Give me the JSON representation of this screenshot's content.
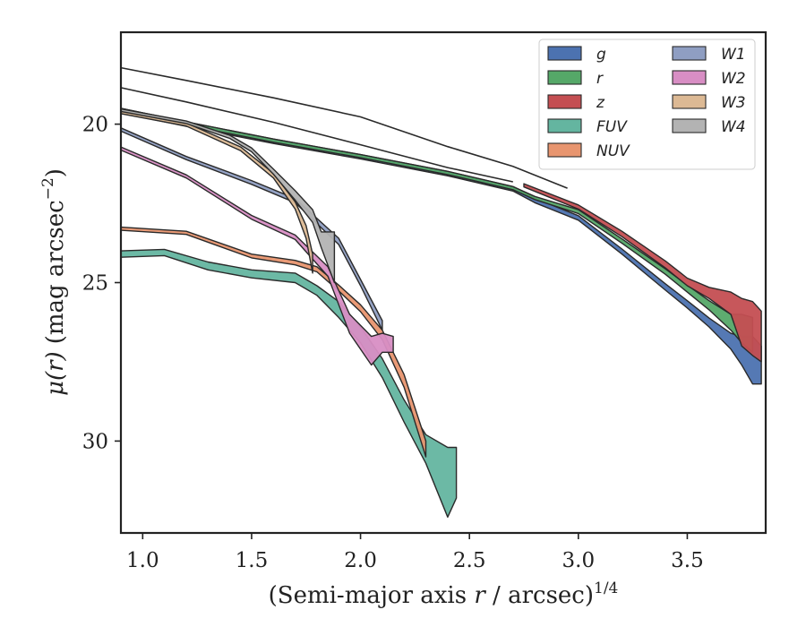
{
  "chart_data": {
    "type": "area",
    "xlabel": "(Semi-major axis r / arcsec)",
    "xlabel_prefix": "(Semi-major axis ",
    "xlabel_var": "r",
    "xlabel_suffix": " / arcsec)",
    "xlabel_sup": "1/4",
    "ylabel_mu": "μ(r)",
    "ylabel_unit": "(mag arcsec",
    "ylabel_sup": "−2",
    "ylabel_close": ")",
    "xlim": [
      0.9,
      3.86
    ],
    "ylim": [
      32.9,
      17.1
    ],
    "y_inverted": true,
    "xticks": [
      1.0,
      1.5,
      2.0,
      2.5,
      3.0,
      3.5
    ],
    "xtick_labels": [
      "1.0",
      "1.5",
      "2.0",
      "2.5",
      "3.0",
      "3.5"
    ],
    "yticks": [
      20,
      25,
      30
    ],
    "ytick_labels": [
      "20",
      "25",
      "30"
    ],
    "grid": false,
    "legend_position": "top-right",
    "legend_columns": 2,
    "series": [
      {
        "name": "g",
        "color": "#4c72b0",
        "points": [
          [
            0.9,
            19.5,
            19.64
          ],
          [
            1.2,
            19.93,
            20.07
          ],
          [
            1.6,
            20.47,
            20.61
          ],
          [
            2.0,
            20.96,
            21.1
          ],
          [
            2.4,
            21.49,
            21.63
          ],
          [
            2.7,
            21.97,
            22.11
          ],
          [
            2.8,
            22.34,
            22.48
          ],
          [
            3.0,
            22.89,
            23.03
          ],
          [
            3.2,
            23.94,
            24.1
          ],
          [
            3.4,
            25.04,
            25.24
          ],
          [
            3.5,
            25.57,
            25.8
          ],
          [
            3.6,
            26.12,
            26.4
          ],
          [
            3.7,
            26.6,
            27.1
          ],
          [
            3.75,
            26.7,
            27.6
          ],
          [
            3.8,
            26.7,
            28.2
          ],
          [
            3.84,
            27.0,
            28.2
          ]
        ]
      },
      {
        "name": "r",
        "color": "#55a868",
        "points": [
          [
            0.9,
            19.5,
            19.6
          ],
          [
            1.2,
            19.93,
            20.03
          ],
          [
            1.6,
            20.47,
            20.57
          ],
          [
            2.0,
            20.96,
            21.06
          ],
          [
            2.4,
            21.49,
            21.59
          ],
          [
            2.7,
            21.97,
            22.07
          ],
          [
            2.8,
            22.28,
            22.38
          ],
          [
            3.0,
            22.7,
            22.82
          ],
          [
            3.2,
            23.62,
            23.76
          ],
          [
            3.4,
            24.57,
            24.74
          ],
          [
            3.5,
            25.08,
            25.3
          ],
          [
            3.6,
            25.57,
            25.86
          ],
          [
            3.7,
            26.0,
            26.5
          ],
          [
            3.75,
            26.0,
            26.9
          ],
          [
            3.8,
            26.1,
            27.2
          ]
        ]
      },
      {
        "name": "z",
        "color": "#c44e52",
        "points": [
          [
            2.75,
            21.88,
            21.98
          ],
          [
            3.0,
            22.55,
            22.68
          ],
          [
            3.2,
            23.38,
            23.55
          ],
          [
            3.4,
            24.32,
            24.54
          ],
          [
            3.5,
            24.86,
            25.1
          ],
          [
            3.6,
            25.15,
            25.5
          ],
          [
            3.7,
            25.3,
            26.0
          ],
          [
            3.75,
            25.5,
            27.0
          ],
          [
            3.8,
            25.6,
            27.3
          ],
          [
            3.84,
            25.9,
            27.5
          ]
        ]
      },
      {
        "name": "FUV",
        "color": "#64b5a0",
        "points": [
          [
            0.9,
            24.0,
            24.2
          ],
          [
            1.1,
            23.95,
            24.15
          ],
          [
            1.3,
            24.35,
            24.6
          ],
          [
            1.5,
            24.6,
            24.85
          ],
          [
            1.7,
            24.7,
            25.0
          ],
          [
            1.8,
            25.1,
            25.4
          ],
          [
            1.9,
            25.6,
            26.1
          ],
          [
            2.0,
            26.4,
            26.9
          ],
          [
            2.1,
            27.4,
            28.0
          ],
          [
            2.2,
            28.7,
            29.4
          ],
          [
            2.3,
            29.8,
            30.7
          ],
          [
            2.4,
            30.2,
            32.4
          ],
          [
            2.44,
            30.2,
            31.8
          ]
        ]
      },
      {
        "name": "NUV",
        "color": "#e8956f",
        "points": [
          [
            0.9,
            23.25,
            23.35
          ],
          [
            1.2,
            23.38,
            23.48
          ],
          [
            1.5,
            24.1,
            24.22
          ],
          [
            1.7,
            24.3,
            24.44
          ],
          [
            1.8,
            24.5,
            24.66
          ],
          [
            1.9,
            25.08,
            25.26
          ],
          [
            2.0,
            25.7,
            25.92
          ],
          [
            2.1,
            26.5,
            26.8
          ],
          [
            2.2,
            27.9,
            28.3
          ],
          [
            2.3,
            30.0,
            30.5
          ]
        ]
      },
      {
        "name": "W1",
        "color": "#8f9ec2",
        "points": [
          [
            0.9,
            20.12,
            20.22
          ],
          [
            1.2,
            21.02,
            21.12
          ],
          [
            1.5,
            21.78,
            21.9
          ],
          [
            1.7,
            22.35,
            22.48
          ],
          [
            1.9,
            23.6,
            23.8
          ],
          [
            2.0,
            24.9,
            25.1
          ],
          [
            2.1,
            26.2,
            26.5
          ]
        ]
      },
      {
        "name": "W2",
        "color": "#d88ec4",
        "points": [
          [
            0.9,
            20.72,
            20.82
          ],
          [
            1.2,
            21.6,
            21.7
          ],
          [
            1.5,
            22.88,
            23.0
          ],
          [
            1.7,
            23.5,
            23.64
          ],
          [
            1.85,
            24.5,
            24.8
          ],
          [
            1.95,
            26.0,
            26.6
          ],
          [
            2.05,
            26.7,
            27.6
          ],
          [
            2.1,
            26.6,
            27.2
          ],
          [
            2.15,
            26.7,
            27.2
          ]
        ]
      },
      {
        "name": "W3",
        "color": "#dcb994",
        "points": [
          [
            0.9,
            19.57,
            19.67
          ],
          [
            1.2,
            19.96,
            20.06
          ],
          [
            1.45,
            20.72,
            20.84
          ],
          [
            1.6,
            21.55,
            21.7
          ],
          [
            1.7,
            22.45,
            22.68
          ],
          [
            1.75,
            23.2,
            23.6
          ],
          [
            1.78,
            24.1,
            24.7
          ]
        ]
      },
      {
        "name": "W4",
        "color": "#b3b3b3",
        "points": [
          [
            0.9,
            19.52,
            19.6
          ],
          [
            1.2,
            19.9,
            19.98
          ],
          [
            1.4,
            20.35,
            20.45
          ],
          [
            1.5,
            20.75,
            20.87
          ],
          [
            1.6,
            21.42,
            21.58
          ],
          [
            1.7,
            22.1,
            22.4
          ],
          [
            1.78,
            22.7,
            23.1
          ],
          [
            1.82,
            23.4,
            23.9
          ],
          [
            1.88,
            23.4,
            25.0
          ]
        ]
      }
    ],
    "outline_curves": [
      [
        [
          0.9,
          18.22
        ],
        [
          1.2,
          18.62
        ],
        [
          1.6,
          19.17
        ],
        [
          2.0,
          19.77
        ],
        [
          2.4,
          20.71
        ],
        [
          2.7,
          21.33
        ],
        [
          2.95,
          22.02
        ]
      ],
      [
        [
          0.9,
          18.85
        ],
        [
          1.2,
          19.3
        ],
        [
          1.6,
          19.94
        ],
        [
          2.0,
          20.65
        ],
        [
          2.4,
          21.37
        ],
        [
          2.7,
          21.82
        ]
      ]
    ]
  }
}
